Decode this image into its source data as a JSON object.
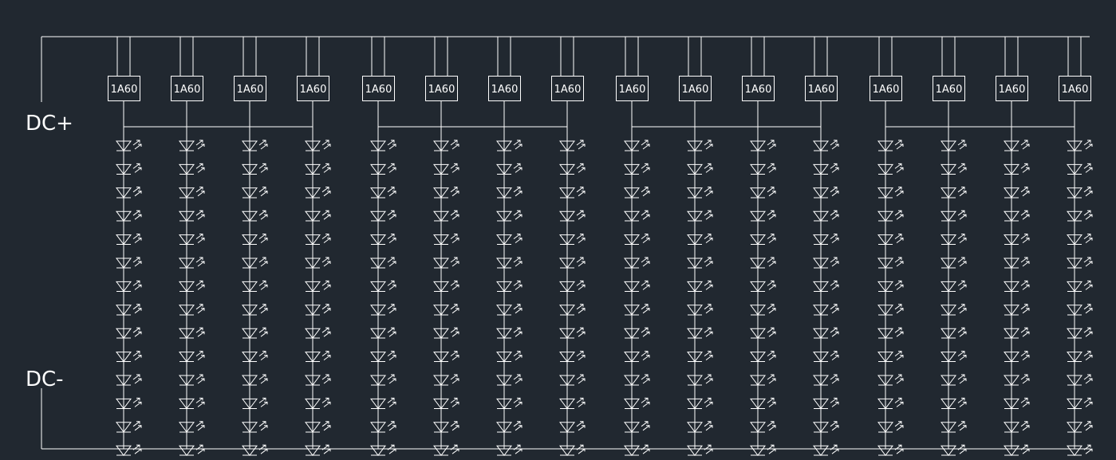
{
  "labels": {
    "positive": "DC+",
    "negative": "DC-"
  },
  "driver_label": "1A60",
  "groups": 4,
  "drivers_per_group": 4,
  "leds_per_string": 14,
  "colors": {
    "background": "#212830",
    "line": "#ffffff"
  }
}
